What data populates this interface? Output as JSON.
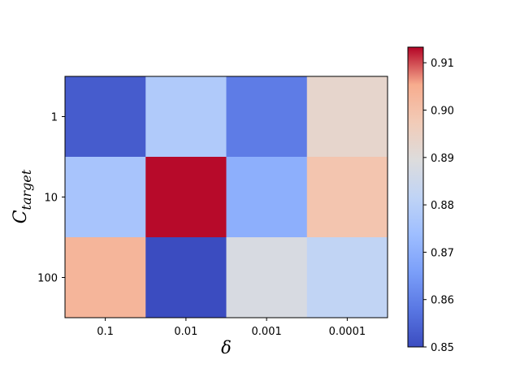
{
  "chart_data": {
    "type": "heatmap",
    "title": "",
    "xlabel": "δ",
    "ylabel": "C",
    "ylabel_subscript": "target",
    "x_categories": [
      "0.1",
      "0.01",
      "0.001",
      "0.0001"
    ],
    "y_categories": [
      "1",
      "10",
      "100"
    ],
    "values": [
      [
        0.853,
        0.878,
        0.859,
        0.893
      ],
      [
        0.876,
        0.913,
        0.87,
        0.899
      ],
      [
        0.903,
        0.85,
        0.888,
        0.882
      ]
    ],
    "colormap": "coolwarm",
    "colorbar": {
      "range": [
        0.85,
        0.9133
      ],
      "ticks": [
        "0.85",
        "0.86",
        "0.87",
        "0.88",
        "0.89",
        "0.90",
        "0.91"
      ]
    },
    "grid": false
  }
}
